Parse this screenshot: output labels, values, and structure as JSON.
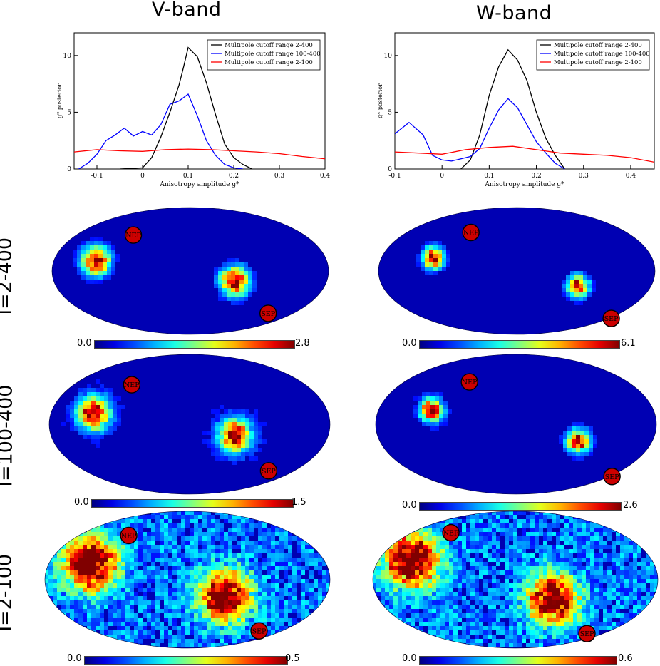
{
  "columns": [
    "V-band",
    "W-band"
  ],
  "row_labels": [
    "l=2-400",
    "l=100-400",
    "l=2-100"
  ],
  "pole_labels": {
    "north": "NEP",
    "south": "SEP"
  },
  "colors": {
    "black": "#000000",
    "blue": "#0000ff",
    "red": "#ff0000",
    "marker": "#cc0000",
    "map_bg": "#00008f"
  },
  "colorbars": [
    {
      "min": "0.0",
      "max": "2.8"
    },
    {
      "min": "0.0",
      "max": "6.1"
    },
    {
      "min": "0.0",
      "max": "1.5"
    },
    {
      "min": "0.0",
      "max": "2.6"
    },
    {
      "min": "0.0",
      "max": "0.5"
    },
    {
      "min": "0.0",
      "max": "0.6"
    }
  ],
  "chart_data": [
    {
      "type": "line",
      "title": "V-band",
      "xlabel": "Anisotropy amplitude g*",
      "ylabel": "g* posterior",
      "xlim": [
        -0.15,
        0.4
      ],
      "ylim": [
        0,
        12
      ],
      "xticks": [
        -0.1,
        0,
        0.1,
        0.2,
        0.3,
        0.4
      ],
      "xtick_labels": [
        "-0.1",
        "0",
        "0.1",
        "0.2",
        "0.3",
        "0.4"
      ],
      "yticks": [
        0,
        5,
        10
      ],
      "ytick_labels": [
        "0",
        "5",
        "10"
      ],
      "legend": "top-right",
      "series": [
        {
          "name": "Multipole cutoff range 2-400",
          "color": "#000000",
          "x": [
            -0.05,
            0,
            0.02,
            0.04,
            0.06,
            0.08,
            0.09,
            0.1,
            0.11,
            0.12,
            0.14,
            0.16,
            0.18,
            0.2,
            0.22,
            0.24
          ],
          "y": [
            0,
            0.1,
            1.0,
            2.8,
            5.0,
            7.4,
            9.0,
            10.7,
            10.3,
            9.9,
            7.6,
            4.8,
            2.2,
            1.0,
            0.4,
            0
          ]
        },
        {
          "name": "Multipole cutoff range 100-400",
          "color": "#0000ff",
          "x": [
            -0.14,
            -0.12,
            -0.1,
            -0.08,
            -0.06,
            -0.04,
            -0.02,
            0,
            0.02,
            0.04,
            0.06,
            0.08,
            0.1,
            0.12,
            0.14,
            0.16,
            0.18,
            0.2,
            0.22
          ],
          "y": [
            0,
            0.5,
            1.3,
            2.5,
            3.0,
            3.6,
            2.9,
            3.3,
            3.0,
            3.9,
            5.7,
            6.0,
            6.6,
            4.7,
            2.5,
            1.2,
            0.4,
            0.1,
            0
          ]
        },
        {
          "name": "Multipole cutoff range 2-100",
          "color": "#ff0000",
          "x": [
            -0.15,
            -0.1,
            -0.05,
            0,
            0.05,
            0.1,
            0.15,
            0.2,
            0.25,
            0.3,
            0.35,
            0.4
          ],
          "y": [
            1.5,
            1.7,
            1.6,
            1.55,
            1.7,
            1.75,
            1.7,
            1.6,
            1.5,
            1.35,
            1.1,
            0.9
          ]
        }
      ]
    },
    {
      "type": "line",
      "title": "W-band",
      "xlabel": "Anisotropy amplitude g*",
      "ylabel": "g* posterior",
      "xlim": [
        -0.1,
        0.45
      ],
      "ylim": [
        0,
        12
      ],
      "xticks": [
        -0.1,
        0,
        0.1,
        0.2,
        0.3,
        0.4
      ],
      "xtick_labels": [
        "-0.1",
        "0",
        "0.1",
        "0.2",
        "0.3",
        "0.4"
      ],
      "yticks": [
        0,
        5,
        10
      ],
      "ytick_labels": [
        "0",
        "5",
        "10"
      ],
      "legend": "top-right",
      "series": [
        {
          "name": "Multipole cutoff range 2-400",
          "color": "#000000",
          "x": [
            0.04,
            0.06,
            0.08,
            0.1,
            0.12,
            0.14,
            0.16,
            0.18,
            0.2,
            0.22,
            0.24,
            0.26
          ],
          "y": [
            0,
            0.8,
            3.0,
            6.5,
            9.0,
            10.5,
            9.6,
            7.8,
            5.0,
            2.7,
            1.2,
            0
          ]
        },
        {
          "name": "Multipole cutoff range 100-400",
          "color": "#0000ff",
          "x": [
            -0.1,
            -0.07,
            -0.04,
            -0.02,
            0,
            0.02,
            0.04,
            0.06,
            0.08,
            0.1,
            0.12,
            0.14,
            0.16,
            0.18,
            0.2,
            0.22,
            0.24,
            0.26
          ],
          "y": [
            3.1,
            4.1,
            3.0,
            1.2,
            0.8,
            0.7,
            0.9,
            1.1,
            1.8,
            3.6,
            5.2,
            6.2,
            5.4,
            3.9,
            2.4,
            1.4,
            0.5,
            0
          ]
        },
        {
          "name": "Multipole cutoff range 2-100",
          "color": "#ff0000",
          "x": [
            -0.1,
            -0.05,
            0,
            0.05,
            0.1,
            0.15,
            0.2,
            0.25,
            0.3,
            0.35,
            0.4,
            0.45
          ],
          "y": [
            1.5,
            1.4,
            1.3,
            1.7,
            1.9,
            2.0,
            1.7,
            1.4,
            1.3,
            1.2,
            1.0,
            0.6
          ]
        }
      ]
    }
  ],
  "maps": [
    {
      "row": 0,
      "col": 0,
      "blobs": [
        {
          "l": 0.16,
          "b": 0.58,
          "w": 0.06,
          "peak": 1.0
        },
        {
          "l": 0.66,
          "b": 0.42,
          "w": 0.06,
          "peak": 1.0
        }
      ],
      "noise": 0.02
    },
    {
      "row": 0,
      "col": 1,
      "blobs": [
        {
          "l": 0.2,
          "b": 0.6,
          "w": 0.045,
          "peak": 1.0
        },
        {
          "l": 0.72,
          "b": 0.38,
          "w": 0.045,
          "peak": 1.0
        }
      ],
      "noise": 0.02
    },
    {
      "row": 1,
      "col": 0,
      "blobs": [
        {
          "l": 0.16,
          "b": 0.58,
          "w": 0.065,
          "peak": 1.0
        },
        {
          "l": 0.66,
          "b": 0.42,
          "w": 0.065,
          "peak": 1.0
        }
      ],
      "noise": 0.08
    },
    {
      "row": 1,
      "col": 1,
      "blobs": [
        {
          "l": 0.2,
          "b": 0.6,
          "w": 0.045,
          "peak": 1.0
        },
        {
          "l": 0.72,
          "b": 0.38,
          "w": 0.045,
          "peak": 1.0
        }
      ],
      "noise": 0.06
    },
    {
      "row": 2,
      "col": 0,
      "blobs": [
        {
          "l": 0.16,
          "b": 0.62,
          "w": 0.11,
          "peak": 1.0
        },
        {
          "l": 0.63,
          "b": 0.38,
          "w": 0.1,
          "peak": 1.0
        }
      ],
      "noise": 0.32
    },
    {
      "row": 2,
      "col": 1,
      "blobs": [
        {
          "l": 0.14,
          "b": 0.64,
          "w": 0.11,
          "peak": 1.0
        },
        {
          "l": 0.63,
          "b": 0.36,
          "w": 0.1,
          "peak": 1.0
        }
      ],
      "noise": 0.32
    }
  ]
}
